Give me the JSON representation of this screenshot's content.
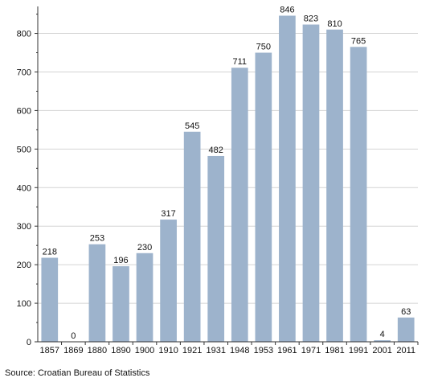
{
  "chart_data": {
    "type": "bar",
    "categories": [
      "1857",
      "1869",
      "1880",
      "1890",
      "1900",
      "1910",
      "1921",
      "1931",
      "1948",
      "1953",
      "1961",
      "1971",
      "1981",
      "1991",
      "2001",
      "2011"
    ],
    "values": [
      218,
      0,
      253,
      196,
      230,
      317,
      545,
      482,
      711,
      750,
      846,
      823,
      810,
      765,
      4,
      63
    ],
    "y_ticks": [
      0,
      100,
      200,
      300,
      400,
      500,
      600,
      700,
      800
    ],
    "ylim": [
      0,
      870
    ],
    "grid": true,
    "bar_color": "#9db3cc",
    "grid_color": "#d4d4d4"
  },
  "source_text": "Source: Croatian Bureau of Statistics"
}
